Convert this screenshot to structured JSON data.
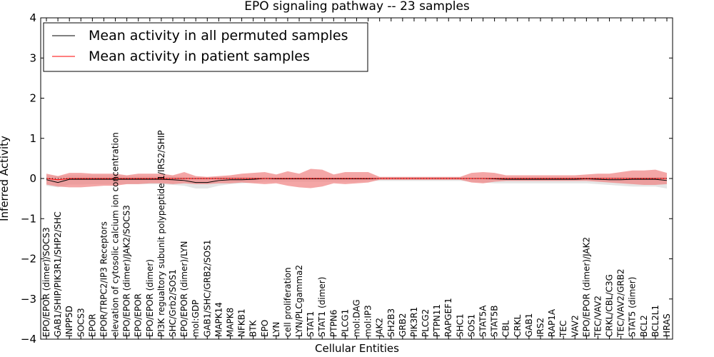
{
  "chart_data": {
    "type": "line",
    "title": "EPO signaling pathway -- 23 samples",
    "xlabel": "Cellular Entities",
    "ylabel": "Inferred Activity",
    "ylim": [
      -4,
      4
    ],
    "yticks": [
      -4,
      -3,
      -2,
      -1,
      0,
      1,
      2,
      3,
      4
    ],
    "ytick_labels": [
      "−4",
      "−3",
      "−2",
      "−1",
      "0",
      "1",
      "2",
      "3",
      "4"
    ],
    "grid": false,
    "legend_position": "top-left",
    "categories": [
      "EPO/EPOR (dimer)/SOCS3",
      "GAB1/SHIP/PIK3R1/SHP2/SHC",
      "INPP5D",
      "SOCS3",
      "EPOR",
      "EPOR/TRPC2/IP3 Receptors",
      "elevation of cytosolic calcium ion concentration",
      "EPO/EPOR (dimer)/JAK2/SOCS3",
      "EPO/EPOR",
      "EPO/EPOR (dimer)",
      "PI3K regualtory subunit polypeptide 1/IRS2/SHIP",
      "SHC/Grb2/SOS1",
      "EPO/EPOR (dimer)/LYN",
      "mol:GDP",
      "GAB1/SHC/GRB2/SOS1",
      "MAPK14",
      "MAPK8",
      "NFKB1",
      "BTK",
      "EPO",
      "LYN",
      "cell proliferation",
      "LYN/PLCgamma2",
      "STAT1",
      "STAT1 (dimer)",
      "PTPN6",
      "PLCG1",
      "mol:DAG",
      "mol:IP3",
      "JAK2",
      "SH2B3",
      "GRB2",
      "PIK3R1",
      "PLCG2",
      "PTPN11",
      "RAPGEF1",
      "SHC1",
      "SOS1",
      "STAT5A",
      "STAT5B",
      "CBL",
      "CRKL",
      "GAB1",
      "IRS2",
      "RAP1A",
      "TEC",
      "VAV2",
      "EPO/EPOR (dimer)/JAK2",
      "TEC/VAV2",
      "CRKL/CBL/C3G",
      "TEC/VAV2/GRB2",
      "STAT5 (dimer)",
      "BCL2",
      "BCL2L1",
      "HRAS"
    ],
    "series": [
      {
        "name": "Mean activity in all permuted samples",
        "color": "#000000",
        "values": [
          -0.03,
          -0.1,
          -0.02,
          -0.02,
          -0.02,
          -0.02,
          -0.02,
          -0.02,
          -0.02,
          -0.02,
          -0.02,
          -0.03,
          -0.05,
          -0.1,
          -0.1,
          -0.05,
          -0.03,
          -0.03,
          -0.02,
          0.0,
          -0.01,
          -0.01,
          -0.01,
          -0.01,
          -0.01,
          -0.01,
          -0.01,
          -0.01,
          -0.01,
          0.0,
          0.0,
          0.0,
          0.0,
          0.0,
          0.0,
          0.0,
          0.0,
          0.0,
          0.0,
          -0.01,
          -0.02,
          -0.02,
          -0.02,
          -0.02,
          -0.02,
          -0.02,
          -0.02,
          -0.01,
          -0.02,
          -0.03,
          -0.03,
          -0.02,
          -0.02,
          -0.02,
          -0.05
        ],
        "band": [
          [
            -0.18,
            0.08
          ],
          [
            -0.22,
            0.06
          ],
          [
            -0.15,
            0.08
          ],
          [
            -0.15,
            0.08
          ],
          [
            -0.14,
            0.08
          ],
          [
            -0.14,
            0.08
          ],
          [
            -0.14,
            0.08
          ],
          [
            -0.14,
            0.06
          ],
          [
            -0.14,
            0.06
          ],
          [
            -0.14,
            0.06
          ],
          [
            -0.14,
            0.06
          ],
          [
            -0.16,
            0.06
          ],
          [
            -0.18,
            0.04
          ],
          [
            -0.25,
            0.02
          ],
          [
            -0.25,
            0.02
          ],
          [
            -0.18,
            0.04
          ],
          [
            -0.14,
            0.04
          ],
          [
            -0.12,
            0.04
          ],
          [
            -0.1,
            0.04
          ],
          [
            -0.08,
            0.04
          ],
          [
            -0.08,
            0.04
          ],
          [
            -0.08,
            0.04
          ],
          [
            -0.08,
            0.04
          ],
          [
            -0.08,
            0.04
          ],
          [
            -0.08,
            0.04
          ],
          [
            -0.08,
            0.04
          ],
          [
            -0.08,
            0.04
          ],
          [
            -0.08,
            0.04
          ],
          [
            -0.06,
            0.04
          ],
          [
            -0.06,
            0.03
          ],
          [
            -0.06,
            0.03
          ],
          [
            -0.06,
            0.03
          ],
          [
            -0.06,
            0.03
          ],
          [
            -0.06,
            0.03
          ],
          [
            -0.06,
            0.03
          ],
          [
            -0.06,
            0.03
          ],
          [
            -0.06,
            0.03
          ],
          [
            -0.08,
            0.03
          ],
          [
            -0.1,
            0.03
          ],
          [
            -0.12,
            0.03
          ],
          [
            -0.12,
            0.03
          ],
          [
            -0.12,
            0.03
          ],
          [
            -0.12,
            0.03
          ],
          [
            -0.12,
            0.03
          ],
          [
            -0.12,
            0.03
          ],
          [
            -0.12,
            0.03
          ],
          [
            -0.12,
            0.03
          ],
          [
            -0.12,
            0.04
          ],
          [
            -0.14,
            0.04
          ],
          [
            -0.16,
            0.04
          ],
          [
            -0.18,
            0.04
          ],
          [
            -0.2,
            0.04
          ],
          [
            -0.2,
            0.04
          ],
          [
            -0.2,
            0.04
          ],
          [
            -0.25,
            0.03
          ]
        ]
      },
      {
        "name": "Mean activity in patient samples",
        "color": "#ff0000",
        "values": [
          0.0,
          -0.03,
          0.0,
          0.0,
          0.0,
          0.0,
          0.0,
          0.0,
          0.0,
          0.0,
          0.0,
          0.0,
          0.0,
          0.0,
          0.0,
          0.0,
          0.0,
          0.0,
          0.0,
          0.0,
          0.0,
          0.0,
          0.0,
          0.0,
          0.0,
          0.0,
          0.0,
          0.0,
          0.0,
          0.0,
          0.0,
          0.0,
          0.0,
          0.0,
          0.0,
          0.0,
          0.0,
          0.0,
          0.0,
          0.0,
          0.0,
          0.0,
          0.0,
          0.0,
          0.0,
          0.0,
          0.0,
          0.0,
          0.0,
          0.0,
          0.0,
          0.0,
          0.0,
          0.0,
          0.0
        ],
        "band": [
          [
            -0.15,
            0.12
          ],
          [
            -0.2,
            0.06
          ],
          [
            -0.22,
            0.14
          ],
          [
            -0.22,
            0.14
          ],
          [
            -0.2,
            0.12
          ],
          [
            -0.18,
            0.12
          ],
          [
            -0.18,
            0.12
          ],
          [
            -0.14,
            0.08
          ],
          [
            -0.14,
            0.12
          ],
          [
            -0.12,
            0.12
          ],
          [
            -0.12,
            0.12
          ],
          [
            -0.14,
            0.08
          ],
          [
            -0.12,
            0.16
          ],
          [
            -0.14,
            0.06
          ],
          [
            -0.14,
            0.04
          ],
          [
            -0.12,
            0.06
          ],
          [
            -0.12,
            0.08
          ],
          [
            -0.1,
            0.12
          ],
          [
            -0.12,
            0.14
          ],
          [
            -0.14,
            0.16
          ],
          [
            -0.12,
            0.1
          ],
          [
            -0.18,
            0.18
          ],
          [
            -0.22,
            0.12
          ],
          [
            -0.24,
            0.24
          ],
          [
            -0.2,
            0.22
          ],
          [
            -0.12,
            0.1
          ],
          [
            -0.14,
            0.16
          ],
          [
            -0.12,
            0.16
          ],
          [
            -0.1,
            0.16
          ],
          [
            -0.03,
            0.04
          ],
          [
            -0.03,
            0.04
          ],
          [
            -0.03,
            0.04
          ],
          [
            -0.03,
            0.04
          ],
          [
            -0.03,
            0.04
          ],
          [
            -0.03,
            0.04
          ],
          [
            -0.03,
            0.04
          ],
          [
            -0.03,
            0.04
          ],
          [
            -0.1,
            0.14
          ],
          [
            -0.12,
            0.16
          ],
          [
            -0.08,
            0.14
          ],
          [
            -0.06,
            0.08
          ],
          [
            -0.06,
            0.08
          ],
          [
            -0.06,
            0.08
          ],
          [
            -0.06,
            0.08
          ],
          [
            -0.06,
            0.08
          ],
          [
            -0.06,
            0.08
          ],
          [
            -0.06,
            0.08
          ],
          [
            -0.06,
            0.1
          ],
          [
            -0.08,
            0.12
          ],
          [
            -0.1,
            0.12
          ],
          [
            -0.12,
            0.16
          ],
          [
            -0.14,
            0.2
          ],
          [
            -0.16,
            0.2
          ],
          [
            -0.16,
            0.22
          ],
          [
            -0.14,
            0.14
          ]
        ]
      }
    ]
  },
  "legend": {
    "entries": [
      {
        "label": "Mean activity in all permuted samples",
        "color": "#000000"
      },
      {
        "label": "Mean activity in patient samples",
        "color": "#ff0000"
      }
    ]
  },
  "colors": {
    "patient_band": "#f08080",
    "permuted_band": "#d3d3d3"
  }
}
